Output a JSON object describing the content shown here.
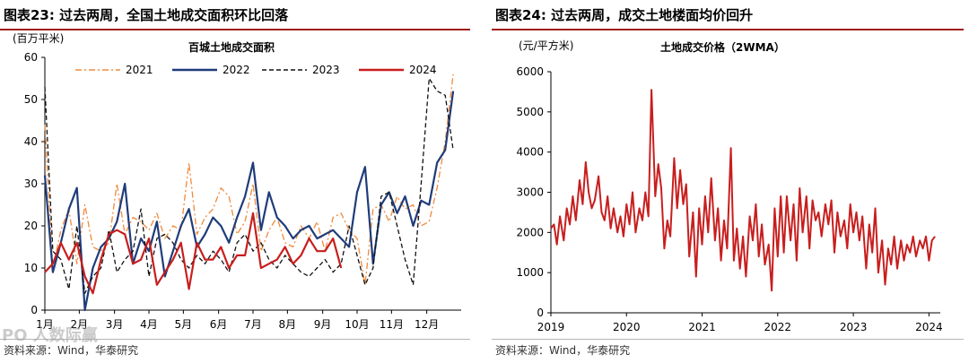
{
  "left_figure": {
    "number": "图表23:",
    "title": "过去两周，全国土地成交面积环比回落",
    "unit": "(百万平米)",
    "source": "资料来源：Wind，华泰研究",
    "watermark": "PO 人数际赢"
  },
  "right_figure": {
    "number": "图表24:",
    "title": "过去两周，成交土地楼面均价回升",
    "unit": "(元/平方米)",
    "source": "资料来源：Wind，华泰研究"
  },
  "colors": {
    "s2021": "#f08a3c",
    "s2022": "#1f3c7a",
    "s2023": "#111111",
    "s2024": "#c81e1e",
    "price": "#c81e1e",
    "title_rule": "#a01c1c"
  },
  "chart_data": [
    {
      "type": "line",
      "title": "百城土地成交面积",
      "ylabel": "(百万平米)",
      "ylim": [
        0,
        60
      ],
      "yticks": [
        0,
        10,
        20,
        30,
        40,
        50,
        60
      ],
      "x_unit": "week of year (1-52)",
      "xlim": [
        1,
        53
      ],
      "xtick_labels": [
        "1月",
        "2月",
        "3月",
        "4月",
        "5月",
        "6月",
        "7月",
        "8月",
        "9月",
        "10月",
        "11月",
        "12月"
      ],
      "xtick_weeks": [
        1,
        5.3,
        9.7,
        14,
        18.3,
        22.7,
        27,
        31.3,
        35.7,
        40,
        44.3,
        48.7
      ],
      "legend_position": "top",
      "series": [
        {
          "name": "2021",
          "style": "dashdot",
          "x": [
            1,
            2,
            3,
            4,
            5,
            6,
            7,
            8,
            9,
            10,
            11,
            12,
            13,
            14,
            15,
            16,
            17,
            18,
            19,
            20,
            21,
            22,
            23,
            24,
            25,
            26,
            27,
            28,
            29,
            30,
            31,
            32,
            33,
            34,
            35,
            36,
            37,
            38,
            39,
            40,
            41,
            42,
            43,
            44,
            45,
            46,
            47,
            48,
            49,
            50,
            51,
            52
          ],
          "values": [
            44,
            10,
            19,
            24,
            11,
            25,
            15,
            14,
            16,
            30,
            18,
            22,
            21,
            19,
            23,
            17,
            20,
            19,
            35,
            18,
            22,
            24,
            29,
            27,
            18,
            21,
            30,
            14,
            19,
            22,
            16,
            15,
            20,
            17,
            21,
            14,
            22,
            23,
            19,
            17,
            6,
            24,
            25,
            21,
            27,
            24,
            25,
            20,
            21,
            29,
            40,
            56
          ]
        },
        {
          "name": "2022",
          "style": "solid",
          "x": [
            1,
            2,
            3,
            4,
            5,
            6,
            7,
            8,
            9,
            10,
            11,
            12,
            13,
            14,
            15,
            16,
            17,
            18,
            19,
            20,
            21,
            22,
            23,
            24,
            25,
            26,
            27,
            28,
            29,
            30,
            31,
            32,
            33,
            34,
            35,
            36,
            37,
            38,
            39,
            40,
            41,
            42,
            43,
            44,
            45,
            46,
            47,
            48,
            49,
            50,
            51,
            52
          ],
          "values": [
            32,
            9,
            16,
            24,
            29,
            0,
            10,
            15,
            17,
            21,
            30,
            11,
            17,
            14,
            21,
            8,
            14,
            20,
            24,
            15,
            18,
            22,
            20,
            16,
            22,
            27,
            35,
            19,
            28,
            22,
            20,
            17,
            19,
            20,
            17,
            18,
            19,
            17,
            15,
            28,
            34,
            11,
            25,
            28,
            23,
            27,
            20,
            26,
            25,
            35,
            38,
            52
          ]
        },
        {
          "name": "2023",
          "style": "dashed",
          "x": [
            1,
            2,
            3,
            4,
            5,
            6,
            7,
            8,
            9,
            10,
            11,
            12,
            13,
            14,
            15,
            16,
            17,
            18,
            19,
            20,
            21,
            22,
            23,
            24,
            25,
            26,
            27,
            28,
            29,
            30,
            31,
            32,
            33,
            34,
            35,
            36,
            37,
            38,
            39,
            40,
            41,
            42,
            43,
            44,
            45,
            46,
            47,
            48,
            49,
            50,
            51,
            52
          ],
          "values": [
            53,
            14,
            12,
            5,
            20,
            4,
            8,
            10,
            19,
            9,
            12,
            14,
            24,
            8,
            17,
            18,
            16,
            12,
            10,
            13,
            11,
            14,
            12,
            9,
            16,
            18,
            14,
            16,
            12,
            10,
            13,
            11,
            9,
            8,
            10,
            12,
            9,
            11,
            20,
            13,
            6,
            10,
            27,
            28,
            20,
            12,
            6,
            30,
            55,
            52,
            51,
            38
          ]
        },
        {
          "name": "2024",
          "style": "solid",
          "x": [
            1,
            2,
            3,
            4,
            5,
            6,
            7,
            8,
            9,
            10,
            11,
            12,
            13,
            14,
            15,
            16,
            17,
            18,
            19,
            20,
            21,
            22,
            23,
            24,
            25,
            26,
            27,
            28,
            29,
            30,
            31,
            32,
            33,
            34,
            35,
            36,
            37,
            38
          ],
          "values": [
            9,
            11,
            16,
            12,
            16,
            8,
            4,
            12,
            18,
            19,
            18,
            11,
            12,
            17,
            6,
            9,
            12,
            16,
            5,
            16,
            12,
            12,
            15,
            10,
            13,
            13,
            23,
            10,
            11,
            12,
            15,
            11,
            13,
            17,
            14,
            14,
            17,
            10
          ]
        }
      ]
    },
    {
      "type": "line",
      "title": "土地成交价格（2WMA）",
      "ylabel": "(元/平方米)",
      "ylim": [
        0,
        6000
      ],
      "yticks": [
        0,
        1000,
        2000,
        3000,
        4000,
        5000,
        6000
      ],
      "x_unit": "year",
      "xlim": [
        2019.0,
        2024.15
      ],
      "xticks": [
        2019,
        2020,
        2021,
        2022,
        2023,
        2024
      ],
      "series": [
        {
          "name": "",
          "x": [
            2019.0,
            2019.04,
            2019.08,
            2019.12,
            2019.17,
            2019.21,
            2019.25,
            2019.29,
            2019.33,
            2019.38,
            2019.42,
            2019.46,
            2019.5,
            2019.54,
            2019.58,
            2019.63,
            2019.67,
            2019.71,
            2019.75,
            2019.79,
            2019.83,
            2019.88,
            2019.92,
            2019.96,
            2020.0,
            2020.04,
            2020.08,
            2020.12,
            2020.17,
            2020.21,
            2020.25,
            2020.29,
            2020.33,
            2020.38,
            2020.42,
            2020.46,
            2020.5,
            2020.54,
            2020.58,
            2020.63,
            2020.67,
            2020.71,
            2020.75,
            2020.79,
            2020.83,
            2020.88,
            2020.92,
            2020.96,
            2021.0,
            2021.04,
            2021.08,
            2021.12,
            2021.17,
            2021.21,
            2021.25,
            2021.29,
            2021.33,
            2021.38,
            2021.42,
            2021.46,
            2021.5,
            2021.54,
            2021.58,
            2021.63,
            2021.67,
            2021.71,
            2021.75,
            2021.79,
            2021.83,
            2021.88,
            2021.92,
            2021.96,
            2022.0,
            2022.04,
            2022.08,
            2022.12,
            2022.17,
            2022.21,
            2022.25,
            2022.29,
            2022.33,
            2022.38,
            2022.42,
            2022.46,
            2022.5,
            2022.54,
            2022.58,
            2022.63,
            2022.67,
            2022.71,
            2022.75,
            2022.79,
            2022.83,
            2022.88,
            2022.92,
            2022.96,
            2023.0,
            2023.04,
            2023.08,
            2023.12,
            2023.17,
            2023.21,
            2023.25,
            2023.29,
            2023.33,
            2023.38,
            2023.42,
            2023.46,
            2023.5,
            2023.54,
            2023.58,
            2023.63,
            2023.67,
            2023.71,
            2023.75,
            2023.79,
            2023.83,
            2023.88,
            2023.92,
            2023.96,
            2024.0,
            2024.04,
            2024.08
          ],
          "values": [
            2100,
            2200,
            1700,
            2400,
            1800,
            2600,
            2200,
            2900,
            2300,
            3300,
            2700,
            3750,
            3000,
            2600,
            2800,
            3400,
            2500,
            2300,
            2900,
            2100,
            2600,
            2000,
            2400,
            1900,
            2700,
            2200,
            3000,
            2000,
            2600,
            2300,
            3000,
            2400,
            5550,
            2900,
            3700,
            3100,
            1600,
            2300,
            1900,
            3850,
            2600,
            3550,
            2700,
            3200,
            1400,
            2500,
            900,
            2600,
            1700,
            2900,
            2000,
            3350,
            1800,
            2600,
            1300,
            2300,
            1600,
            4100,
            1300,
            2100,
            1100,
            1900,
            900,
            2400,
            1800,
            2700,
            1400,
            2200,
            1200,
            1700,
            550,
            2600,
            1400,
            2900,
            1500,
            2900,
            1800,
            2700,
            1300,
            3100,
            2000,
            2900,
            1600,
            2800,
            2300,
            2500,
            1900,
            2700,
            2200,
            2800,
            1500,
            2500,
            1900,
            2300,
            1600,
            2700,
            2000,
            2500,
            1800,
            2400,
            1100,
            2200,
            1500,
            2600,
            1000,
            1800,
            700,
            1600,
            1200,
            1900,
            1100,
            1800,
            1300,
            1700,
            1500,
            1900,
            1400,
            1800,
            1600,
            1900,
            1300,
            1800,
            1900
          ]
        }
      ]
    }
  ]
}
